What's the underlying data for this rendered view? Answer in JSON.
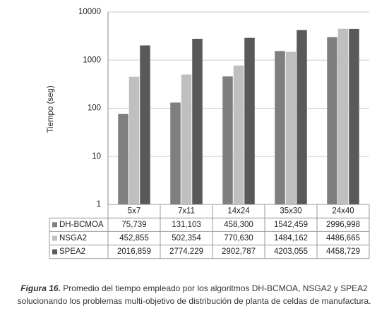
{
  "chart_data": {
    "type": "bar",
    "y_label": "Tiempo (seg)",
    "log_scale": true,
    "grid": true,
    "categories": [
      "5x7",
      "7x11",
      "14x24",
      "35x30",
      "24x40"
    ],
    "series": [
      {
        "name": "DH-BCMOA",
        "color": "#7f7f7f",
        "values": [
          75.739,
          131.103,
          458.3,
          1542.459,
          2996.998
        ],
        "value_labels": [
          "75,739",
          "131,103",
          "458,300",
          "1542,459",
          "2996,998"
        ]
      },
      {
        "name": "NSGA2",
        "color": "#bfbfbf",
        "values": [
          452.855,
          502.354,
          770.63,
          1484.162,
          4486.665
        ],
        "value_labels": [
          "452,855",
          "502,354",
          "770,630",
          "1484,162",
          "4486,665"
        ]
      },
      {
        "name": "SPEA2",
        "color": "#595959",
        "values": [
          2016.859,
          2774.229,
          2902.787,
          4203.055,
          4458.729
        ],
        "value_labels": [
          "2016,859",
          "2774,229",
          "2902,787",
          "4203,055",
          "4458,729"
        ]
      }
    ],
    "ylim": [
      1,
      10000
    ],
    "yticks": [
      1,
      10,
      100,
      1000,
      10000
    ],
    "caption_label": "Figura 16.",
    "caption_lines": [
      "Promedio del tiempo empleado por los algoritmos DH-BCMOA, NSGA2 y  SPEA2",
      "solucionando los problemas multi-objetivo de distribución de planta de celdas de manufactura."
    ]
  }
}
